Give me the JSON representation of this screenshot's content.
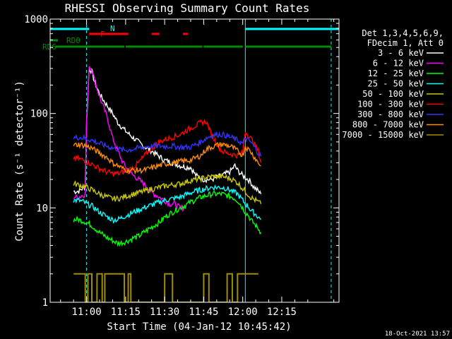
{
  "chart_data": {
    "type": "line",
    "title": "RHESSI Observing Summary Count Rates",
    "xlabel": "Start Time (04-Jan-12 10:45:42)",
    "ylabel": "Count Rate (s⁻¹ detector⁻¹)",
    "yscale": "log",
    "ylim": [
      1,
      1000
    ],
    "xlim_minutes": [
      -14,
      97
    ],
    "x_ticks": [
      {
        "t": 0,
        "label": "11:00"
      },
      {
        "t": 15,
        "label": "11:15"
      },
      {
        "t": 30,
        "label": "11:30"
      },
      {
        "t": 45,
        "label": "11:45"
      },
      {
        "t": 60,
        "label": "12:00"
      },
      {
        "t": 75,
        "label": "12:15"
      }
    ],
    "y_ticks": [
      {
        "v": 1,
        "label": "1"
      },
      {
        "v": 10,
        "label": "10"
      },
      {
        "v": 100,
        "label": "100"
      },
      {
        "v": 1000,
        "label": "1000"
      }
    ],
    "legend": {
      "header_1": "Det 1,3,4,5,6,9,",
      "header_2": "FDecim 1, Att 0"
    },
    "series": [
      {
        "name": "3 - 6 keV",
        "color": "#ffffff",
        "t": [
          -5,
          -3,
          -0.5,
          0,
          1,
          2,
          3,
          5,
          8,
          10,
          12,
          15,
          18,
          22,
          25,
          28,
          30,
          33,
          36,
          38,
          40,
          42,
          45,
          48,
          50,
          52,
          55,
          57,
          58,
          60,
          62,
          63,
          64,
          65,
          66,
          67
        ],
        "v": [
          15,
          15,
          17,
          80,
          300,
          280,
          220,
          160,
          120,
          100,
          80,
          65,
          55,
          45,
          40,
          35,
          32,
          30,
          28,
          27,
          27,
          22,
          20,
          20,
          21,
          22,
          24,
          28,
          25,
          22,
          20,
          19,
          17,
          16,
          15,
          14
        ]
      },
      {
        "name": "6 - 12 keV",
        "color": "#ff00ff",
        "t": [
          -5,
          -3,
          -0.5,
          0,
          1,
          2,
          3,
          5,
          8,
          10,
          12,
          14,
          16,
          18,
          20,
          22,
          24,
          26,
          28,
          30,
          32,
          34,
          36,
          38
        ],
        "v": [
          13,
          13,
          14,
          80,
          320,
          300,
          230,
          150,
          90,
          55,
          40,
          30,
          25,
          22,
          20,
          18,
          16,
          14,
          13,
          12,
          11,
          11,
          10,
          10
        ]
      },
      {
        "name": "12 - 25 keV",
        "color": "#00ff00",
        "t": [
          -5,
          -3,
          -1,
          0,
          2,
          5,
          8,
          10,
          12,
          14,
          16,
          18,
          20,
          22,
          24,
          26,
          28,
          30,
          33,
          36,
          40,
          44,
          46,
          48,
          50,
          52,
          54,
          56,
          58,
          60,
          61,
          62,
          63,
          64,
          65,
          66,
          67
        ],
        "v": [
          7.5,
          7.5,
          7.2,
          7,
          6.5,
          5.5,
          4.8,
          4.5,
          4.2,
          4.3,
          4.5,
          4.8,
          5,
          5.5,
          6,
          6.5,
          7,
          8,
          9,
          10,
          11.5,
          13,
          13.5,
          14,
          14,
          14,
          13.5,
          13,
          12,
          10,
          9,
          8.5,
          7.5,
          7,
          6.5,
          6,
          5.5
        ]
      },
      {
        "name": "25 - 50 keV",
        "color": "#00ffff",
        "t": [
          -5,
          -3,
          -1,
          0,
          2,
          5,
          8,
          10,
          12,
          14,
          16,
          18,
          20,
          22,
          24,
          26,
          28,
          30,
          33,
          36,
          40,
          44,
          46,
          48,
          50,
          52,
          54,
          56,
          58,
          60,
          61,
          62,
          63,
          64,
          65,
          66,
          67
        ],
        "v": [
          12,
          12,
          11.5,
          11,
          10.5,
          9,
          8,
          7.5,
          7.5,
          8,
          8.5,
          9,
          9.5,
          10,
          10.5,
          11,
          11.5,
          12,
          12.5,
          13,
          14.5,
          15.5,
          16,
          16.5,
          16.5,
          16.5,
          16,
          15,
          14,
          12,
          11,
          10.5,
          9.5,
          9,
          8.5,
          8,
          7.5
        ]
      },
      {
        "name": "50 - 100 keV",
        "color": "#c8c800",
        "t": [
          -5,
          -3,
          -1,
          0,
          2,
          5,
          8,
          10,
          12,
          14,
          16,
          18,
          20,
          22,
          24,
          26,
          28,
          30,
          33,
          36,
          40,
          44,
          46,
          48,
          50,
          52,
          54,
          56,
          58,
          60,
          61,
          62,
          63,
          64,
          65,
          66,
          67
        ],
        "v": [
          18,
          17.5,
          17,
          16.5,
          15.5,
          14,
          13,
          12.5,
          12.5,
          13,
          13.5,
          14,
          14.5,
          15,
          15.5,
          16,
          16.5,
          17,
          17.5,
          18,
          19.5,
          20.5,
          21,
          21.5,
          21.5,
          21.5,
          21,
          20,
          18.5,
          16,
          15,
          14,
          13,
          12.5,
          12,
          11.5,
          11
        ]
      },
      {
        "name": "100 - 300 keV",
        "color": "#ff0000",
        "t": [
          -5,
          -3,
          -1,
          0,
          2,
          5,
          8,
          10,
          12,
          14,
          16,
          18,
          20,
          22,
          24,
          26,
          28,
          30,
          33,
          36,
          38,
          40,
          42,
          44,
          46,
          48,
          50,
          52,
          54,
          56,
          58,
          60,
          61,
          62,
          63,
          64,
          65,
          66,
          67
        ],
        "v": [
          34,
          33,
          32,
          31,
          29,
          26,
          24,
          23,
          23,
          24,
          25,
          27,
          30,
          35,
          40,
          45,
          50,
          53,
          56,
          60,
          65,
          70,
          75,
          80,
          82,
          60,
          48,
          40,
          38,
          37,
          36,
          38,
          65,
          60,
          55,
          50,
          45,
          40,
          30
        ]
      },
      {
        "name": "300 - 800 keV",
        "color": "#3232ff",
        "t": [
          -5,
          -3,
          -1,
          0,
          2,
          5,
          8,
          10,
          12,
          14,
          16,
          18,
          20,
          22,
          24,
          26,
          28,
          30,
          33,
          36,
          40,
          44,
          46,
          48,
          50,
          52,
          54,
          56,
          58,
          60,
          61,
          62,
          63,
          64,
          65,
          66,
          67
        ],
        "v": [
          55,
          56,
          55,
          54,
          52,
          48,
          45,
          43,
          42,
          41,
          41,
          42,
          43,
          44,
          45,
          45,
          45,
          45,
          45,
          44,
          44,
          50,
          55,
          58,
          60,
          60,
          58,
          55,
          52,
          48,
          55,
          52,
          50,
          46,
          42,
          38,
          35
        ]
      },
      {
        "name": "800 - 7000 keV",
        "color": "#ff8c00",
        "t": [
          -5,
          -3,
          -1,
          0,
          2,
          5,
          8,
          10,
          12,
          14,
          16,
          18,
          20,
          22,
          24,
          26,
          28,
          30,
          33,
          36,
          40,
          44,
          46,
          48,
          50,
          52,
          54,
          56,
          58,
          60,
          61,
          62,
          63,
          64,
          65,
          66,
          67
        ],
        "v": [
          46,
          47,
          46,
          45,
          43,
          38,
          34,
          30,
          28,
          26,
          25,
          25,
          25,
          25,
          26,
          27,
          28,
          29,
          30,
          31,
          32,
          36,
          42,
          44,
          46,
          47,
          46,
          44,
          40,
          36,
          45,
          42,
          40,
          36,
          33,
          30,
          28
        ]
      },
      {
        "name": "7000 - 15000 keV",
        "color": "#a08c00",
        "t": [
          -5,
          -0.5,
          -0.49,
          0.5,
          0.51,
          2,
          2.01,
          4,
          4.01,
          6,
          6.01,
          7,
          7.01,
          14.5,
          14.51,
          16,
          16.01,
          17,
          17.01,
          30,
          30.01,
          33,
          33.01,
          45,
          45.01,
          47,
          47.01,
          54,
          54.01,
          56,
          56.01,
          58,
          58.01,
          66
        ],
        "v": [
          2,
          2,
          1,
          1,
          2,
          2,
          1,
          1,
          2,
          2,
          1,
          1,
          2,
          2,
          1,
          1,
          2,
          2,
          1,
          1,
          2,
          2,
          1,
          1,
          2,
          2,
          1,
          1,
          2,
          2,
          1,
          1,
          2,
          2
        ]
      }
    ],
    "state_bars": [
      {
        "name": "N",
        "color": "#00ffff",
        "segments": [
          [
            -14,
            1
          ],
          [
            61,
            97
          ]
        ]
      },
      {
        "name": "F",
        "color": "#ff0000",
        "segments": [
          [
            1,
            16
          ],
          [
            25,
            28
          ],
          [
            37,
            39
          ]
        ]
      },
      {
        "name": "RD0",
        "color": "#008c00",
        "segments": [
          [
            -14,
            -11
          ]
        ]
      },
      {
        "name": "RD6",
        "color": "#008c00",
        "segments": [
          [
            -12,
            14.5
          ],
          [
            15,
            44.5
          ],
          [
            45,
            60
          ],
          [
            61,
            94
          ]
        ]
      }
    ],
    "vertical_lines": [
      {
        "t": -14,
        "style": "solid",
        "color": "#00ffff"
      },
      {
        "t": 0,
        "style": "dashed",
        "color": "#00ffff"
      },
      {
        "t": 61,
        "style": "solid",
        "color": "#00ffff"
      },
      {
        "t": 94,
        "style": "dashed",
        "color": "#00ffff"
      }
    ]
  },
  "timestamp": "18-Oct-2021 13:57"
}
